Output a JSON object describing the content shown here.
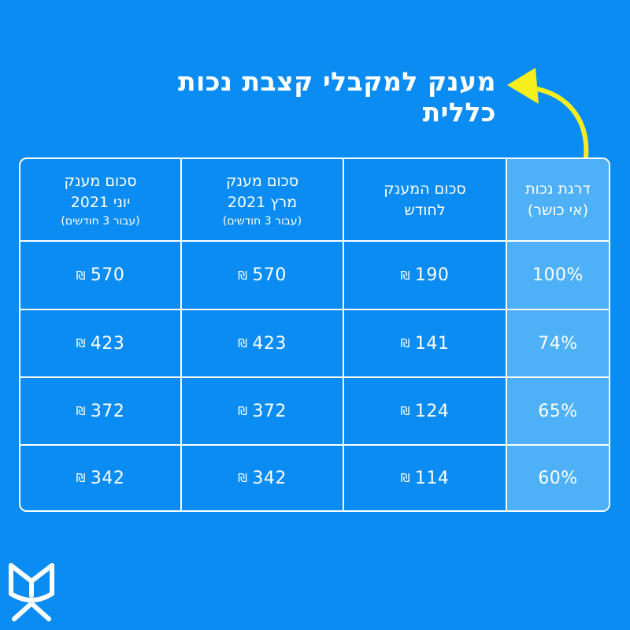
{
  "title": "מענק למקבלי קצבת נכות כללית",
  "table": {
    "headers": {
      "col1": {
        "line1": "דרגת נכות",
        "line2": "(אי כושר)"
      },
      "col2": {
        "line1": "סכום המענק",
        "line2": "לחודש"
      },
      "col3": {
        "line1": "סכום מענק",
        "line2": "מרץ 2021",
        "sub": "(עבור 3 חודשים)"
      },
      "col4": {
        "line1": "סכום מענק",
        "line2": "יוני 2021",
        "sub": "(עבור 3 חודשים)"
      }
    },
    "currency": "₪",
    "rows": [
      {
        "degree": "100%",
        "monthly": "190",
        "march": "570",
        "june": "570"
      },
      {
        "degree": "74%",
        "monthly": "141",
        "march": "423",
        "june": "423"
      },
      {
        "degree": "65%",
        "monthly": "124",
        "march": "372",
        "june": "372"
      },
      {
        "degree": "60%",
        "monthly": "114",
        "march": "342",
        "june": "342"
      }
    ]
  },
  "colors": {
    "background": "#0a8cf2",
    "highlight_column": "#4eb0f7",
    "arrow": "#f6ef1d"
  },
  "icons": {
    "arrow": "curved-arrow-icon",
    "logo": "bituach-leumi-logo-icon"
  }
}
